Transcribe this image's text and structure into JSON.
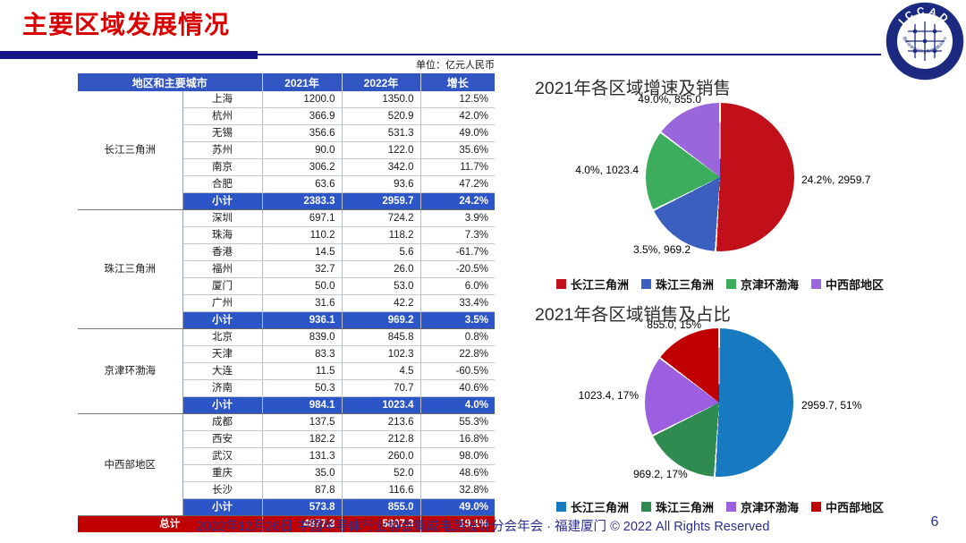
{
  "slide": {
    "title": "主要区域发展情况",
    "footer": "2022年12月26日 中国半导体行业协会集成电路设计分会年会 · 福建厦门 © 2022 All Rights Reserved",
    "page_number": "6",
    "title_color": "#da0000",
    "divider_color": "#171487"
  },
  "logo": {
    "text": "ICCAD",
    "subtext": "中国半导体行业协会集成电路设计分会",
    "color": "#1b2a80"
  },
  "table": {
    "unit_label": "单位：亿元人民币",
    "headers": [
      "地区和主要城市",
      "2021年",
      "2022年",
      "增长"
    ],
    "groups": [
      {
        "region": "长江三角洲",
        "rows": [
          [
            "上海",
            "1200.0",
            "1350.0",
            "12.5%"
          ],
          [
            "杭州",
            "366.9",
            "520.9",
            "42.0%"
          ],
          [
            "无锡",
            "356.6",
            "531.3",
            "49.0%"
          ],
          [
            "苏州",
            "90.0",
            "122.0",
            "35.6%"
          ],
          [
            "南京",
            "306.2",
            "342.0",
            "11.7%"
          ],
          [
            "合肥",
            "63.6",
            "93.6",
            "47.2%"
          ]
        ],
        "subtotal": [
          "小计",
          "2383.3",
          "2959.7",
          "24.2%"
        ]
      },
      {
        "region": "珠江三角洲",
        "rows": [
          [
            "深圳",
            "697.1",
            "724.2",
            "3.9%"
          ],
          [
            "珠海",
            "110.2",
            "118.2",
            "7.3%"
          ],
          [
            "香港",
            "14.5",
            "5.6",
            "-61.7%"
          ],
          [
            "福州",
            "32.7",
            "26.0",
            "-20.5%"
          ],
          [
            "厦门",
            "50.0",
            "53.0",
            "6.0%"
          ],
          [
            "广州",
            "31.6",
            "42.2",
            "33.4%"
          ]
        ],
        "subtotal": [
          "小计",
          "936.1",
          "969.2",
          "3.5%"
        ]
      },
      {
        "region": "京津环渤海",
        "rows": [
          [
            "北京",
            "839.0",
            "845.8",
            "0.8%"
          ],
          [
            "天津",
            "83.3",
            "102.3",
            "22.8%"
          ],
          [
            "大连",
            "11.5",
            "4.5",
            "-60.5%"
          ],
          [
            "济南",
            "50.3",
            "70.7",
            "40.6%"
          ]
        ],
        "subtotal": [
          "小计",
          "984.1",
          "1023.4",
          "4.0%"
        ]
      },
      {
        "region": "中西部地区",
        "rows": [
          [
            "成都",
            "137.5",
            "213.6",
            "55.3%"
          ],
          [
            "西安",
            "182.2",
            "212.8",
            "16.8%"
          ],
          [
            "武汉",
            "131.3",
            "260.0",
            "98.0%"
          ],
          [
            "重庆",
            "35.0",
            "52.0",
            "48.6%"
          ],
          [
            "长沙",
            "87.8",
            "116.6",
            "32.8%"
          ]
        ],
        "subtotal": [
          "小计",
          "573.8",
          "855.0",
          "49.0%"
        ]
      }
    ],
    "total": [
      "总计",
      "4877.3",
      "5807.3",
      "19.1%"
    ],
    "colors": {
      "header_bg": "#3156c4",
      "subtotal_bg": "#2c55c8",
      "total_bg": "#c00000"
    }
  },
  "chart_data": [
    {
      "type": "pie",
      "title": "2021年各区域增速及销售",
      "labels": [
        "长江三角洲",
        "珠江三角洲",
        "京津环渤海",
        "中西部地区"
      ],
      "values": [
        2959.7,
        969.2,
        1023.4,
        855.0
      ],
      "growth": [
        "24.2%",
        "3.5%",
        "4.0%",
        "49.0%"
      ],
      "slice_labels": [
        "24.2%, 2959.7",
        "3.5%, 969.2",
        "4.0%, 1023.4",
        "49.0%, 855.0"
      ],
      "colors": [
        "#c2101a",
        "#3a5fbf",
        "#3cad5c",
        "#9a66dc"
      ],
      "legend_position": "bottom",
      "start_angle_deg": 0
    },
    {
      "type": "pie",
      "title": "2021年各区域销售及占比",
      "labels": [
        "长江三角洲",
        "珠江三角洲",
        "京津环渤海",
        "中西部地区"
      ],
      "values": [
        2959.7,
        969.2,
        1023.4,
        855.0
      ],
      "share": [
        "51%",
        "17%",
        "17%",
        "15%"
      ],
      "slice_labels": [
        "2959.7, 51%",
        "969.2, 17%",
        "1023.4, 17%",
        "855.0, 15%"
      ],
      "colors": [
        "#1779c0",
        "#2f8b50",
        "#9b5fe0",
        "#c00000"
      ],
      "legend_position": "bottom",
      "start_angle_deg": 0
    }
  ]
}
